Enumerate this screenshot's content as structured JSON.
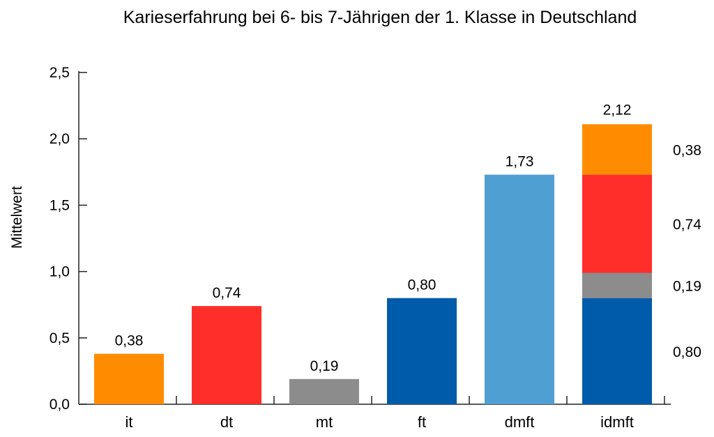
{
  "chart_data": {
    "type": "bar",
    "title": "Karieserfahrung bei 6- bis 7-Jährigen der 1. Klasse in Deutschland",
    "xlabel": "",
    "ylabel": "Mittelwert",
    "ylim": [
      0,
      2.5
    ],
    "yticks": [
      "0,0",
      "0,5",
      "1,0",
      "1,5",
      "2,0",
      "2,5"
    ],
    "yticks_values": [
      0,
      0.5,
      1.0,
      1.5,
      2.0,
      2.5
    ],
    "categories": [
      "it",
      "dt",
      "mt",
      "ft",
      "dmft",
      "idmft"
    ],
    "bars": [
      {
        "category": "it",
        "value": 0.38,
        "label": "0,38",
        "color": "#FF8C00"
      },
      {
        "category": "dt",
        "value": 0.74,
        "label": "0,74",
        "color": "#FF2E2A"
      },
      {
        "category": "mt",
        "value": 0.19,
        "label": "0,19",
        "color": "#8C8C8C"
      },
      {
        "category": "ft",
        "value": 0.8,
        "label": "0,80",
        "color": "#005BAA"
      },
      {
        "category": "dmft",
        "value": 1.73,
        "label": "1,73",
        "color": "#4F9FD2"
      }
    ],
    "stacked_bar": {
      "category": "idmft",
      "total": 2.12,
      "total_label": "2,12",
      "segments": [
        {
          "value": 0.8,
          "label": "0,80",
          "color": "#005BAA"
        },
        {
          "value": 0.19,
          "label": "0,19",
          "color": "#8C8C8C"
        },
        {
          "value": 0.74,
          "label": "0,74",
          "color": "#FF2E2A"
        },
        {
          "value": 0.38,
          "label": "0,38",
          "color": "#FF8C00"
        }
      ]
    },
    "grid": false,
    "legend": "none"
  }
}
